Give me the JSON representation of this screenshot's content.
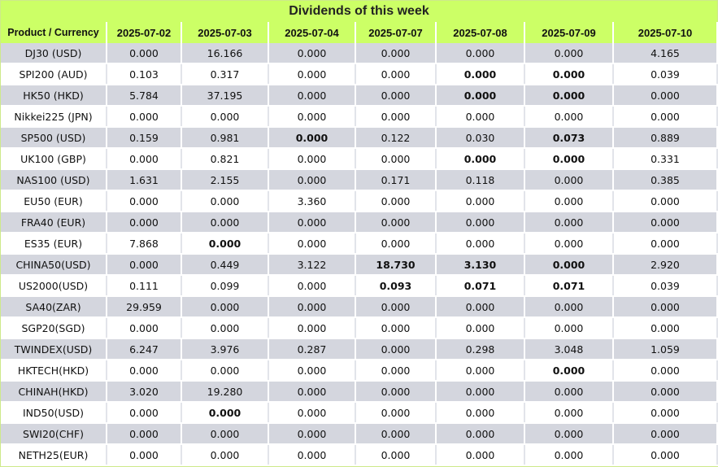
{
  "title": "Dividends of this week",
  "columns": [
    "Product / Currency",
    "2025-07-02",
    "2025-07-03",
    "2025-07-04",
    "2025-07-07",
    "2025-07-08",
    "2025-07-09",
    "2025-07-10"
  ],
  "rows": [
    {
      "product": "DJ30 (USD)",
      "values": [
        "0.000",
        "16.166",
        "0.000",
        "0.000",
        "0.000",
        "0.000",
        "4.165"
      ],
      "bold": []
    },
    {
      "product": "SPI200 (AUD)",
      "values": [
        "0.103",
        "0.317",
        "0.000",
        "0.000",
        "0.000",
        "0.000",
        "0.039"
      ],
      "bold": [
        4,
        5
      ]
    },
    {
      "product": "HK50 (HKD)",
      "values": [
        "5.784",
        "37.195",
        "0.000",
        "0.000",
        "0.000",
        "0.000",
        "0.000"
      ],
      "bold": [
        4,
        5
      ]
    },
    {
      "product": "Nikkei225 (JPN)",
      "values": [
        "0.000",
        "0.000",
        "0.000",
        "0.000",
        "0.000",
        "0.000",
        "0.000"
      ],
      "bold": []
    },
    {
      "product": "SP500 (USD)",
      "values": [
        "0.159",
        "0.981",
        "0.000",
        "0.122",
        "0.030",
        "0.073",
        "0.889"
      ],
      "bold": [
        2,
        5
      ]
    },
    {
      "product": "UK100 (GBP)",
      "values": [
        "0.000",
        "0.821",
        "0.000",
        "0.000",
        "0.000",
        "0.000",
        "0.331"
      ],
      "bold": [
        4,
        5
      ]
    },
    {
      "product": "NAS100 (USD)",
      "values": [
        "1.631",
        "2.155",
        "0.000",
        "0.171",
        "0.118",
        "0.000",
        "0.385"
      ],
      "bold": []
    },
    {
      "product": "EU50 (EUR)",
      "values": [
        "0.000",
        "0.000",
        "3.360",
        "0.000",
        "0.000",
        "0.000",
        "0.000"
      ],
      "bold": []
    },
    {
      "product": "FRA40 (EUR)",
      "values": [
        "0.000",
        "0.000",
        "0.000",
        "0.000",
        "0.000",
        "0.000",
        "0.000"
      ],
      "bold": []
    },
    {
      "product": "ES35 (EUR)",
      "values": [
        "7.868",
        "0.000",
        "0.000",
        "0.000",
        "0.000",
        "0.000",
        "0.000"
      ],
      "bold": [
        1
      ]
    },
    {
      "product": "CHINA50(USD)",
      "values": [
        "0.000",
        "0.449",
        "3.122",
        "18.730",
        "3.130",
        "0.000",
        "2.920"
      ],
      "bold": [
        3,
        4,
        5
      ]
    },
    {
      "product": "US2000(USD)",
      "values": [
        "0.111",
        "0.099",
        "0.000",
        "0.093",
        "0.071",
        "0.071",
        "0.039"
      ],
      "bold": [
        3,
        4,
        5
      ]
    },
    {
      "product": "SA40(ZAR)",
      "values": [
        "29.959",
        "0.000",
        "0.000",
        "0.000",
        "0.000",
        "0.000",
        "0.000"
      ],
      "bold": []
    },
    {
      "product": "SGP20(SGD)",
      "values": [
        "0.000",
        "0.000",
        "0.000",
        "0.000",
        "0.000",
        "0.000",
        "0.000"
      ],
      "bold": []
    },
    {
      "product": "TWINDEX(USD)",
      "values": [
        "6.247",
        "3.976",
        "0.287",
        "0.000",
        "0.298",
        "3.048",
        "1.059"
      ],
      "bold": []
    },
    {
      "product": "HKTECH(HKD)",
      "values": [
        "0.000",
        "0.000",
        "0.000",
        "0.000",
        "0.000",
        "0.000",
        "0.000"
      ],
      "bold": [
        5
      ]
    },
    {
      "product": "CHINAH(HKD)",
      "values": [
        "3.020",
        "19.280",
        "0.000",
        "0.000",
        "0.000",
        "0.000",
        "0.000"
      ],
      "bold": []
    },
    {
      "product": "IND50(USD)",
      "values": [
        "0.000",
        "0.000",
        "0.000",
        "0.000",
        "0.000",
        "0.000",
        "0.000"
      ],
      "bold": [
        1
      ]
    },
    {
      "product": "SWI20(CHF)",
      "values": [
        "0.000",
        "0.000",
        "0.000",
        "0.000",
        "0.000",
        "0.000",
        "0.000"
      ],
      "bold": []
    },
    {
      "product": "NETH25(EUR)",
      "values": [
        "0.000",
        "0.000",
        "0.000",
        "0.000",
        "0.000",
        "0.000",
        "0.000"
      ],
      "bold": []
    }
  ]
}
